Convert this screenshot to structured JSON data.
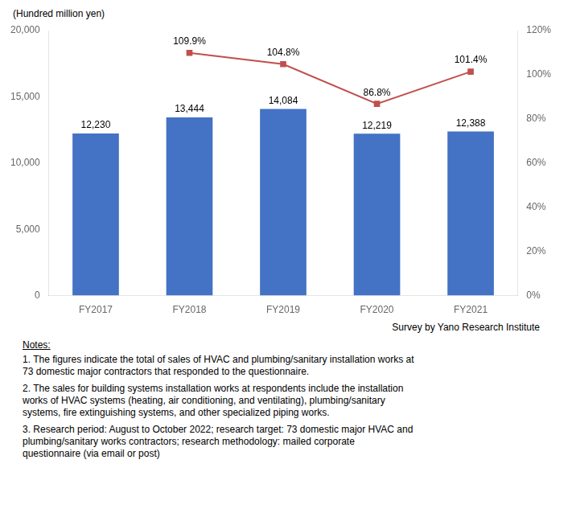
{
  "chart_data": {
    "type": "bar",
    "categories": [
      "FY2017",
      "FY2018",
      "FY2019",
      "FY2020",
      "FY2021"
    ],
    "ylabel": "(Hundred million yen)",
    "series": [
      {
        "type": "bar",
        "color": "#4472C4",
        "values": [
          12230,
          13444,
          14084,
          12219,
          12388
        ],
        "value_labels": [
          "12,230",
          "13,444",
          "14,084",
          "12,219",
          "12,388"
        ]
      },
      {
        "type": "line",
        "axis": "y2",
        "color": "#C0504D",
        "marker": "square",
        "line_style": "solid",
        "values": [
          null,
          109.9,
          104.8,
          86.8,
          101.4
        ],
        "value_labels": [
          null,
          "109.9%",
          "104.8%",
          "86.8%",
          "101.4%"
        ]
      }
    ],
    "ylim": [
      0,
      20000
    ],
    "yticks": [
      0,
      {
        "value": 5000,
        "label": "5,000"
      },
      {
        "value": 10000,
        "label": "10,000"
      },
      {
        "value": 15000,
        "label": "15,000"
      },
      {
        "value": 20000,
        "label": "20,000"
      }
    ],
    "y2lim": [
      0,
      120
    ],
    "y2ticks": [
      {
        "value": 0,
        "label": "0%"
      },
      {
        "value": 20,
        "label": "20%"
      },
      {
        "value": 40,
        "label": "40%"
      },
      {
        "value": 60,
        "label": "60%"
      },
      {
        "value": 80,
        "label": "80%"
      },
      {
        "value": 100,
        "label": "100%"
      },
      {
        "value": 120,
        "label": "120%"
      }
    ],
    "data_labels": true,
    "grid": false,
    "annotations": [
      "Survey by Yano Research Institute",
      "Notes:",
      "1. The figures indicate the total of sales of HVAC and plumbing/sanitary installation works at\n73 domestic major contractors that responded to the questionnaire.",
      "2. The sales for building systems installation works at respondents include the installation\nworks of HVAC systems (heating, air conditioning, and ventilating), plumbing/sanitary\nsystems, fire extinguishing systems, and other specialized piping works.",
      "3. Research period: August to October 2022; research target: 73 domestic major HVAC and\nplumbing/sanitary works contractors; research methodology: mailed corporate\nquestionnaire (via email or post)"
    ]
  }
}
